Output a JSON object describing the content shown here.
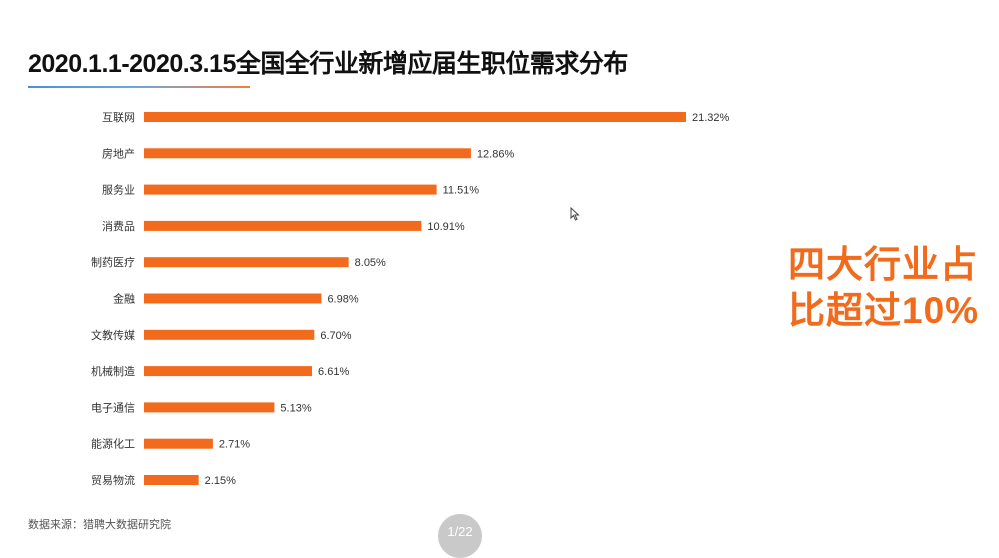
{
  "slide": {
    "title": "2020.1.1-2020.3.15全国全行业新增应届生职位需求分布",
    "callout_line1": "四大行业占",
    "callout_line2": "比超过10%",
    "source": "数据来源：猎聘大数据研究院",
    "page": "1/22"
  },
  "colors": {
    "bar": "#f26a1b",
    "callout": "#f26a1b",
    "title": "#111111"
  },
  "chart_data": {
    "type": "bar",
    "orientation": "horizontal",
    "title": "2020.1.1-2020.3.15全国全行业新增应届生职位需求分布",
    "xlabel": "",
    "ylabel": "",
    "unit": "%",
    "xlim": [
      0,
      21.32
    ],
    "grid": false,
    "legend": "none",
    "categories": [
      "互联网",
      "房地产",
      "服务业",
      "消费品",
      "制药医疗",
      "金融",
      "文教传媒",
      "机械制造",
      "电子通信",
      "能源化工",
      "贸易物流"
    ],
    "values": [
      21.32,
      12.86,
      11.51,
      10.91,
      8.05,
      6.98,
      6.7,
      6.61,
      5.13,
      2.71,
      2.15
    ],
    "data_labels": [
      "21.32%",
      "12.86%",
      "11.51%",
      "10.91%",
      "8.05%",
      "6.98%",
      "6.70%",
      "6.61%",
      "5.13%",
      "2.71%",
      "2.15%"
    ]
  }
}
